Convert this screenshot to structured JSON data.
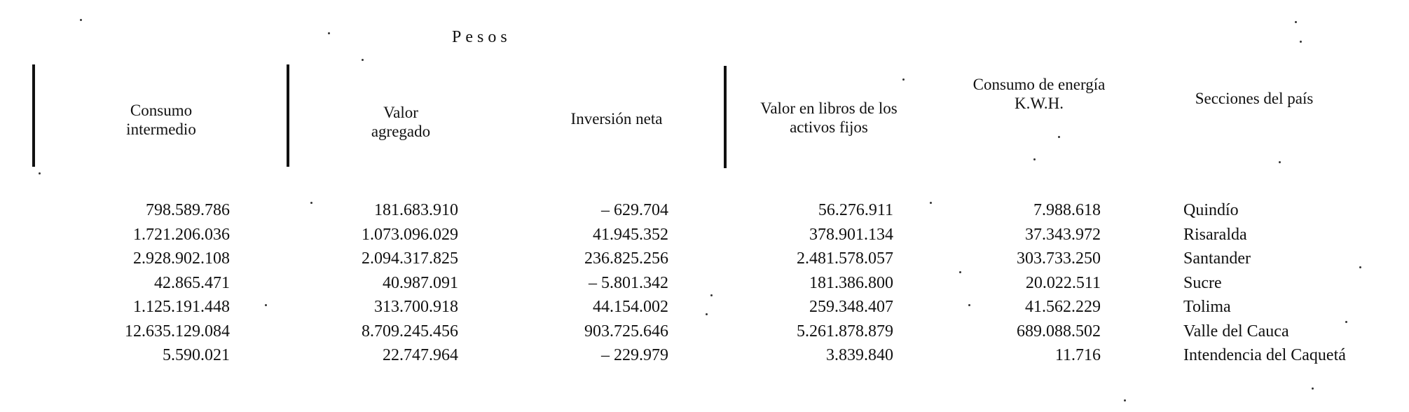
{
  "title": "Pesos",
  "headers": {
    "consumo_intermedio": [
      "Consumo",
      "intermedio"
    ],
    "valor_agregado": [
      "Valor",
      "agregado"
    ],
    "inversion_neta": [
      "Inversión neta"
    ],
    "valor_libros": [
      "Valor en libros de los",
      "activos fijos"
    ],
    "consumo_energia": [
      "Consumo de energía",
      "K.W.H."
    ],
    "secciones": [
      "Secciones del país"
    ]
  },
  "rows": {
    "consumo_intermedio": [
      "798.589.786",
      "1.721.206.036",
      "2.928.902.108",
      "42.865.471",
      "1.125.191.448",
      "12.635.129.084",
      "5.590.021"
    ],
    "valor_agregado": [
      "181.683.910",
      "1.073.096.029",
      "2.094.317.825",
      "40.987.091",
      "313.700.918",
      "8.709.245.456",
      "22.747.964"
    ],
    "inversion_neta": [
      "– 629.704",
      "41.945.352",
      "236.825.256",
      "– 5.801.342",
      "44.154.002",
      "903.725.646",
      "– 229.979"
    ],
    "valor_libros": [
      "56.276.911",
      "378.901.134",
      "2.481.578.057",
      "181.386.800",
      "259.348.407",
      "5.261.878.879",
      "3.839.840"
    ],
    "consumo_energia": [
      "7.988.618",
      "37.343.972",
      "303.733.250",
      "20.022.511",
      "41.562.229",
      "689.088.502",
      "11.716"
    ],
    "secciones": [
      "Quindío",
      "Risaralda",
      "Santander",
      "Sucre",
      "Tolima",
      "Valle del Cauca",
      "Intendencia del Caquetá"
    ]
  }
}
